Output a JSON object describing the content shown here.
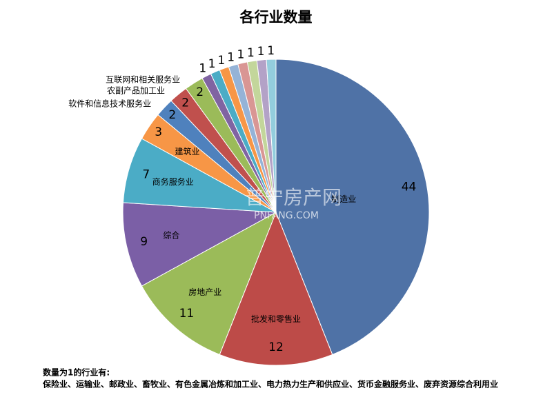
{
  "chart_data": {
    "type": "pie",
    "title": "各行业数量",
    "categories": [
      "制造业",
      "批发和零售业",
      "房地产业",
      "综合",
      "商务服务业",
      "建筑业",
      "软件和信息技术服务业",
      "农副产品加工业",
      "互联网和相关服务业",
      null,
      null,
      null,
      null,
      null,
      null,
      null,
      null
    ],
    "values": [
      44,
      12,
      11,
      9,
      7,
      3,
      2,
      2,
      2,
      1,
      1,
      1,
      1,
      1,
      1,
      1,
      1
    ],
    "colors": [
      "#4f72a6",
      "#bd4b48",
      "#9bbb59",
      "#7b5fa6",
      "#4bacc6",
      "#f79646",
      "#4f81bd",
      "#c0504d",
      "#9bbb59",
      "#8064a2",
      "#4bacc6",
      "#f79646",
      "#95b3d7",
      "#d99694",
      "#c3d69b",
      "#b3a2c7",
      "#93cddd"
    ],
    "note": [
      "数量为1的行业有:",
      "保险业、运输业、邮政业、畜牧业、有色金属冶炼和加工业、电力热力生产和供应业、货币金融服务业、废弃资源综合利用业"
    ],
    "watermark": [
      "普宁房产网",
      "PNFANG.COM"
    ]
  }
}
